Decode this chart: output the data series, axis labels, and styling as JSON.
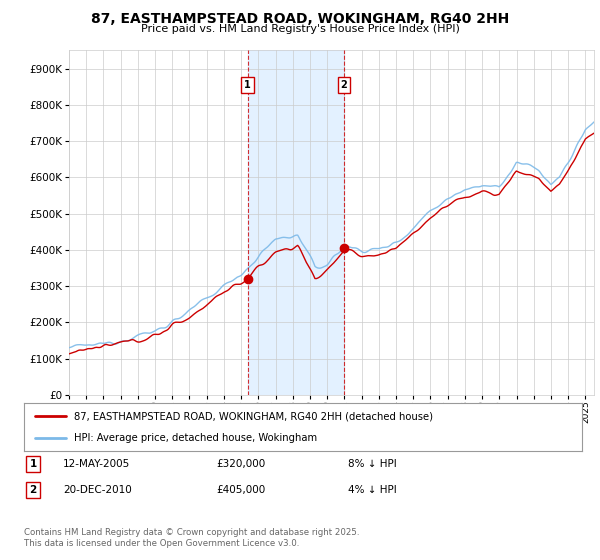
{
  "title": "87, EASTHAMPSTEAD ROAD, WOKINGHAM, RG40 2HH",
  "subtitle": "Price paid vs. HM Land Registry's House Price Index (HPI)",
  "ylim": [
    0,
    950000
  ],
  "yticks": [
    0,
    100000,
    200000,
    300000,
    400000,
    500000,
    600000,
    700000,
    800000,
    900000
  ],
  "sale1_date": "12-MAY-2005",
  "sale1_price": 320000,
  "sale1_pct": "8% ↓ HPI",
  "sale2_date": "20-DEC-2010",
  "sale2_price": 405000,
  "sale2_pct": "4% ↓ HPI",
  "sale1_x": 2005.37,
  "sale2_x": 2010.97,
  "legend1": "87, EASTHAMPSTEAD ROAD, WOKINGHAM, RG40 2HH (detached house)",
  "legend2": "HPI: Average price, detached house, Wokingham",
  "footer": "Contains HM Land Registry data © Crown copyright and database right 2025.\nThis data is licensed under the Open Government Licence v3.0.",
  "line_color_red": "#cc0000",
  "line_color_blue": "#7cb9e8",
  "vline_color": "#cc0000",
  "shade_color": "#ddeeff",
  "background_color": "#ffffff",
  "grid_color": "#cccccc",
  "box_color": "#cc0000",
  "xlim_start": 1995.0,
  "xlim_end": 2025.5
}
